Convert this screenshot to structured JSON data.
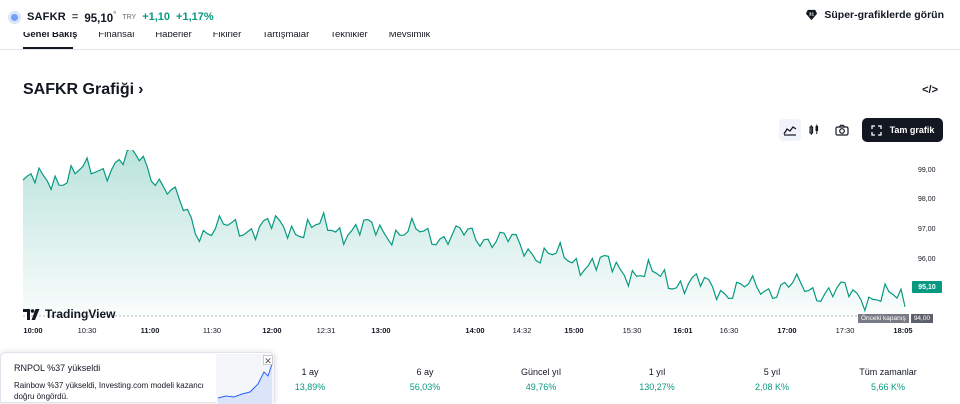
{
  "header": {
    "symbol": "SAFKR",
    "separator": "=",
    "price": "95,10",
    "currency": "TRY",
    "change": "+1,10",
    "change_pct": "+1,17%",
    "super_charts": "Süper-grafiklerde görün"
  },
  "tabs": [
    "Genel Bakış",
    "Finansal",
    "Haberler",
    "Fikirler",
    "Tartışmalar",
    "Teknikler",
    "Mevsimlik"
  ],
  "section": {
    "title": "SAFKR Grafiği",
    "title_chevron": "›",
    "embed": "</>"
  },
  "toolbar": {
    "fullscreen_label": "Tam grafik"
  },
  "icons": {
    "area": "area-chart-icon",
    "candles": "candles-icon",
    "camera": "camera-icon",
    "fullscreen": "fullscreen-icon",
    "embed": "embed-icon",
    "super": "super-chart-icon"
  },
  "colors": {
    "accent": "#089981",
    "dark": "#131722"
  },
  "chart_data": {
    "type": "area",
    "title": "",
    "x": [
      "10:00",
      "10:30",
      "11:00",
      "11:30",
      "12:00",
      "12:31",
      "13:00",
      "14:00",
      "14:32",
      "15:00",
      "15:30",
      "16:01",
      "16:30",
      "17:00",
      "17:30",
      "18:05"
    ],
    "values": [
      98.6,
      98.9,
      99.4,
      97.2,
      97.3,
      97.25,
      97.2,
      97.05,
      97.0,
      96.4,
      96.1,
      95.7,
      95.4,
      95.5,
      95.3,
      95.1
    ],
    "ylim": [
      93.6,
      99.6
    ],
    "yticks": [
      "99,00",
      "98,00",
      "97,00",
      "96,00"
    ],
    "last_price": "95,10",
    "prev_close_label": "Önceki kapanış",
    "prev_close": "94,00",
    "watermark": "TradingView"
  },
  "performance": [
    {
      "label": "1 ay",
      "value": "13,89%"
    },
    {
      "label": "6 ay",
      "value": "56,03%"
    },
    {
      "label": "Güncel yıl",
      "value": "49,76%"
    },
    {
      "label": "1 yıl",
      "value": "130,27%"
    },
    {
      "label": "5 yıl",
      "value": "2,08 K%"
    },
    {
      "label": "Tüm zamanlar",
      "value": "5,66 K%"
    }
  ],
  "popup": {
    "headline": "RNPOL %37 yükseldi",
    "body": "Rainbow %37 yükseldi, Investing.com modeli kazancı doğru öngördü.",
    "close": "✕"
  }
}
